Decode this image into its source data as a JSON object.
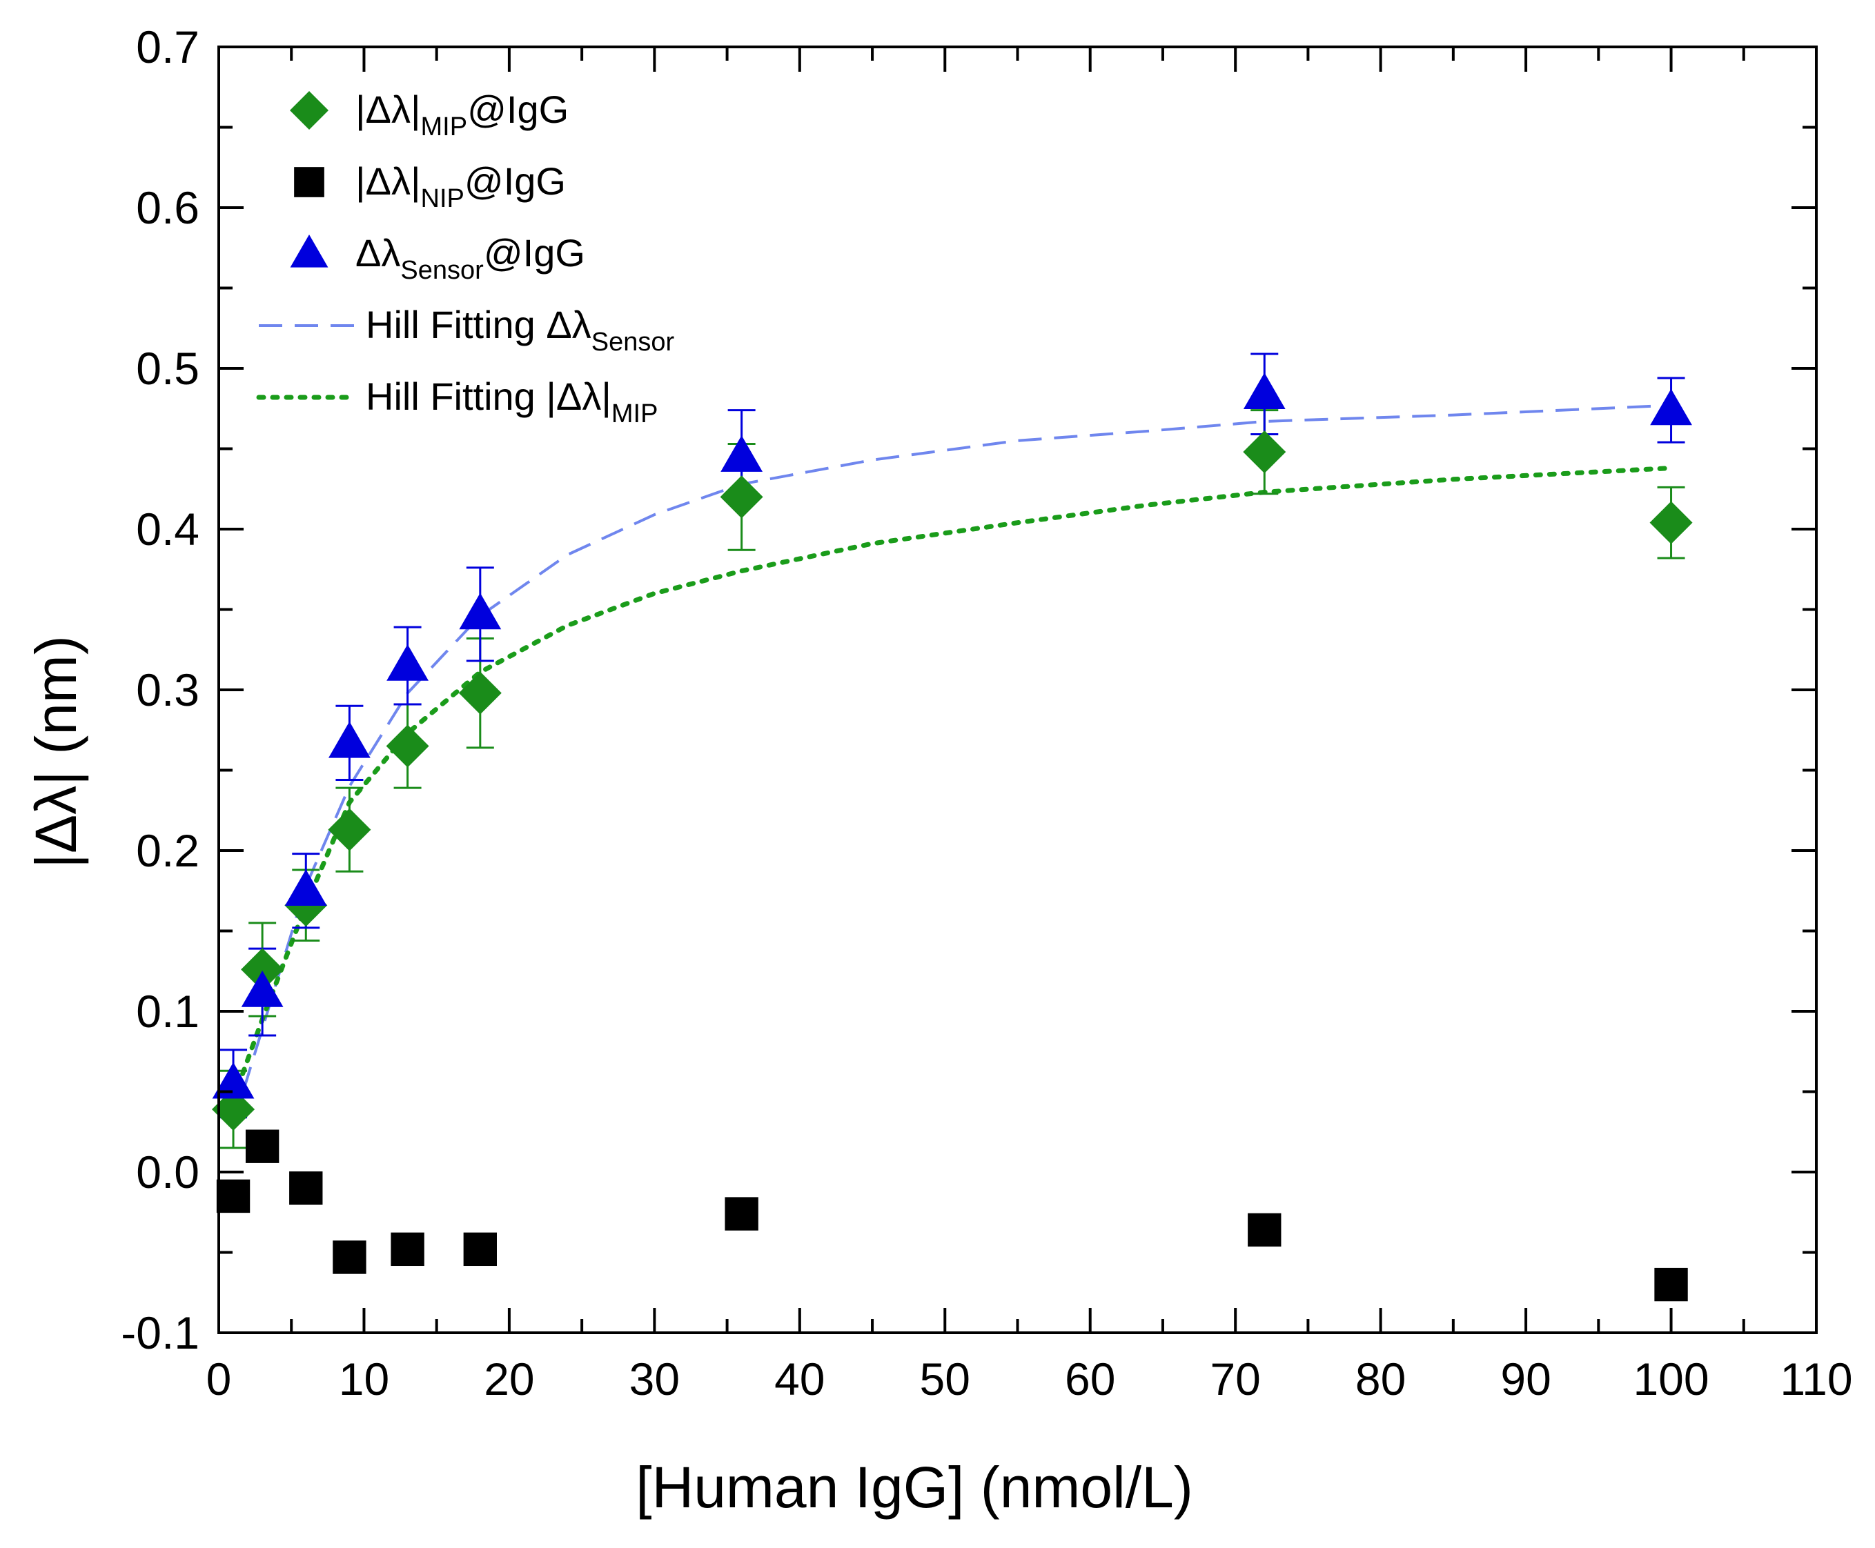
{
  "chart_data": {
    "type": "scatter",
    "xlabel": "[Human IgG] (nmol/L)",
    "ylabel": "|Δλ| (nm)",
    "xlim": [
      0,
      110
    ],
    "ylim": [
      -0.1,
      0.7
    ],
    "xticks": [
      0,
      10,
      20,
      30,
      40,
      50,
      60,
      70,
      80,
      90,
      100,
      110
    ],
    "yticks": [
      -0.1,
      0.0,
      0.1,
      0.2,
      0.3,
      0.4,
      0.5,
      0.6,
      0.7
    ],
    "ytick_labels": [
      "-0.1",
      "0.0",
      "0.1",
      "0.2",
      "0.3",
      "0.4",
      "0.5",
      "0.6",
      "0.7"
    ],
    "legend_position": "top-left",
    "colors": {
      "mip": "#1a8c1a",
      "nip": "#000000",
      "sensor": "#0000dd",
      "hill_sensor": "#6f86ee",
      "hill_mip": "#1a9c1a"
    },
    "series": [
      {
        "name": "mip",
        "marker": "diamond",
        "label_main": "|Δλ|",
        "label_sub": "MIP",
        "label_tail": "@IgG",
        "x": [
          1,
          3,
          6,
          9,
          13,
          18,
          36,
          72,
          100
        ],
        "y": [
          0.039,
          0.126,
          0.166,
          0.213,
          0.265,
          0.298,
          0.42,
          0.448,
          0.404
        ],
        "err": [
          0.024,
          0.029,
          0.022,
          0.026,
          0.026,
          0.034,
          0.033,
          0.026,
          0.022
        ]
      },
      {
        "name": "nip",
        "marker": "square",
        "label_main": "|Δλ|",
        "label_sub": "NIP",
        "label_tail": "@IgG",
        "x": [
          1,
          3,
          6,
          9,
          13,
          18,
          36,
          72,
          100
        ],
        "y": [
          -0.015,
          0.016,
          -0.01,
          -0.053,
          -0.048,
          -0.048,
          -0.026,
          -0.036,
          -0.07
        ]
      },
      {
        "name": "sensor",
        "marker": "triangle",
        "label_main": "Δλ",
        "label_sub": "Sensor",
        "label_tail": "@IgG",
        "x": [
          1,
          3,
          6,
          9,
          13,
          18,
          36,
          72,
          100
        ],
        "y": [
          0.055,
          0.112,
          0.175,
          0.267,
          0.315,
          0.347,
          0.445,
          0.484,
          0.474
        ],
        "err": [
          0.021,
          0.027,
          0.023,
          0.023,
          0.024,
          0.029,
          0.029,
          0.025,
          0.02
        ]
      }
    ],
    "fits": [
      {
        "name": "hill_sensor",
        "style": "dashed",
        "label_main": "Hill Fitting Δλ",
        "label_sub": "Sensor",
        "x": [
          1,
          3,
          6,
          9,
          13,
          18,
          24,
          30,
          36,
          45,
          55,
          64,
          72,
          85,
          100
        ],
        "y": [
          0.03,
          0.089,
          0.178,
          0.24,
          0.298,
          0.346,
          0.384,
          0.409,
          0.428,
          0.443,
          0.455,
          0.461,
          0.467,
          0.471,
          0.477
        ]
      },
      {
        "name": "hill_mip",
        "style": "dotted",
        "label_main": "Hill Fitting |Δλ|",
        "label_sub": "MIP",
        "x": [
          1,
          3,
          6,
          9,
          13,
          18,
          24,
          30,
          36,
          45,
          55,
          64,
          72,
          85,
          100
        ],
        "y": [
          0.045,
          0.095,
          0.166,
          0.23,
          0.273,
          0.311,
          0.34,
          0.36,
          0.374,
          0.391,
          0.404,
          0.415,
          0.423,
          0.431,
          0.438
        ]
      }
    ]
  }
}
